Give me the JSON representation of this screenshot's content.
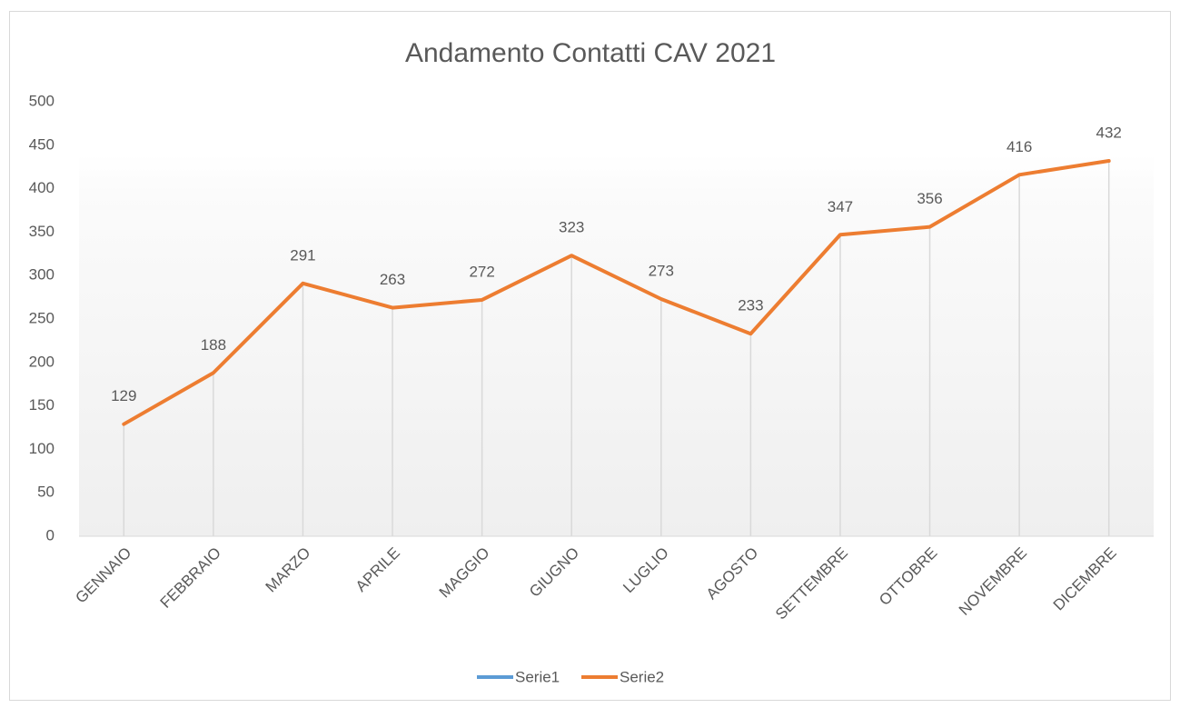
{
  "chart_data": {
    "type": "line",
    "title": "Andamento Contatti CAV 2021",
    "categories": [
      "GENNAIO",
      "FEBBRAIO",
      "MARZO",
      "APRILE",
      "MAGGIO",
      "GIUGNO",
      "LUGLIO",
      "AGOSTO",
      "SETTEMBRE",
      "OTTOBRE",
      "NOVEMBRE",
      "DICEMBRE"
    ],
    "series": [
      {
        "name": "Serie1",
        "color": "#5b9bd5",
        "values": [
          null,
          null,
          null,
          null,
          null,
          null,
          null,
          null,
          null,
          null,
          null,
          null
        ]
      },
      {
        "name": "Serie2",
        "color": "#ed7d31",
        "values": [
          129,
          188,
          291,
          263,
          272,
          323,
          273,
          233,
          347,
          356,
          416,
          432
        ]
      }
    ],
    "ylim": [
      0,
      500
    ],
    "yticks": [
      0,
      50,
      100,
      150,
      200,
      250,
      300,
      350,
      400,
      450,
      500
    ],
    "grid": false,
    "legend": "bottom"
  }
}
